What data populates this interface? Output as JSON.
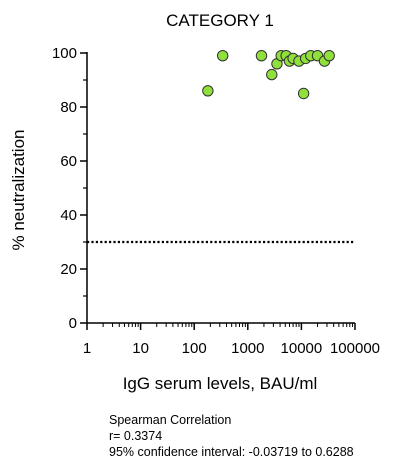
{
  "chart_data": {
    "type": "scatter",
    "title": "CATEGORY 1",
    "xlabel": "IgG serum levels, BAU/ml",
    "ylabel": "% neutralization",
    "x_scale": "log",
    "xlim": [
      1,
      100000
    ],
    "ylim": [
      0,
      100
    ],
    "x_ticks": [
      1,
      10,
      100,
      1000,
      10000,
      100000
    ],
    "x_tick_labels": [
      "1",
      "10",
      "100",
      "1000",
      "10000",
      "100000"
    ],
    "y_ticks": [
      0,
      20,
      40,
      60,
      80,
      100
    ],
    "y_tick_labels": [
      "0",
      "20",
      "40",
      "60",
      "80",
      "100"
    ],
    "grid": false,
    "reference_line": {
      "y": 30,
      "style": "dotted"
    },
    "marker_color": "#8fe03a",
    "marker_edge_color": "#333333",
    "series": [
      {
        "points": [
          {
            "x": 180,
            "y": 86
          },
          {
            "x": 340,
            "y": 99
          },
          {
            "x": 1800,
            "y": 99
          },
          {
            "x": 2800,
            "y": 92
          },
          {
            "x": 3500,
            "y": 96
          },
          {
            "x": 4200,
            "y": 99
          },
          {
            "x": 5200,
            "y": 99
          },
          {
            "x": 6000,
            "y": 97
          },
          {
            "x": 7000,
            "y": 98
          },
          {
            "x": 9000,
            "y": 97
          },
          {
            "x": 11000,
            "y": 85
          },
          {
            "x": 12000,
            "y": 98
          },
          {
            "x": 15000,
            "y": 99
          },
          {
            "x": 20000,
            "y": 99
          },
          {
            "x": 27000,
            "y": 97
          },
          {
            "x": 33000,
            "y": 99
          }
        ]
      }
    ]
  },
  "stats": {
    "method": "Spearman Correlation",
    "r": "r= 0.3374",
    "ci": "95% confidence interval: -0.03719 to 0.6288"
  }
}
